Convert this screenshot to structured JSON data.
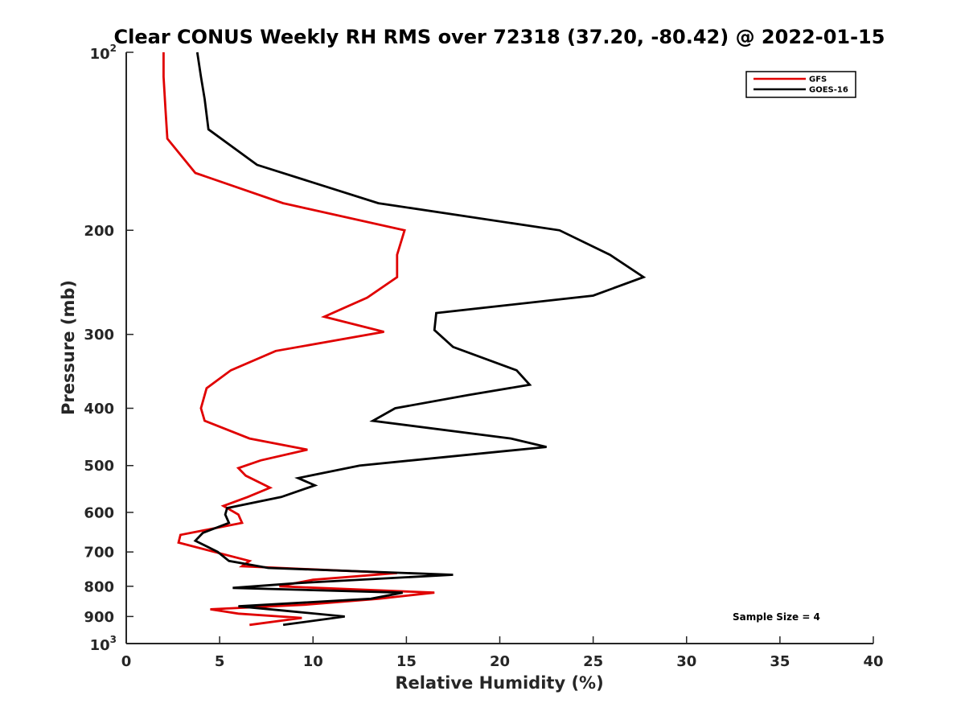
{
  "chart_data": {
    "type": "line",
    "title": "Clear CONUS Weekly RH RMS over 72318 (37.20, -80.42) @ 2022-01-15",
    "xlabel": "Relative Humidity (%)",
    "ylabel": "Pressure (mb)",
    "xlim": [
      0,
      40
    ],
    "ylim": [
      100,
      1000
    ],
    "y_scale": "log",
    "y_reversed": true,
    "grid": false,
    "legend_position": "top-right",
    "x_ticks": [
      0,
      5,
      10,
      15,
      20,
      25,
      30,
      35,
      40
    ],
    "x_tick_labels": [
      "0",
      "5",
      "10",
      "15",
      "20",
      "25",
      "30",
      "35",
      "40"
    ],
    "y_ticks": [
      200,
      300,
      400,
      500,
      600,
      700,
      800,
      900
    ],
    "y_tick_labels": [
      "200",
      "300",
      "400",
      "500",
      "600",
      "700",
      "800",
      "900"
    ],
    "y_end_labels": [
      {
        "value": 100,
        "base": "10",
        "exp": "2"
      },
      {
        "value": 1000,
        "base": "10",
        "exp": "3"
      }
    ],
    "series": [
      {
        "name": "GFS",
        "color": "#e00000",
        "points": [
          [
            2.0,
            100
          ],
          [
            2.0,
            110
          ],
          [
            2.1,
            125
          ],
          [
            2.2,
            140
          ],
          [
            3.7,
            160
          ],
          [
            8.4,
            180
          ],
          [
            14.9,
            200
          ],
          [
            14.5,
            220
          ],
          [
            14.5,
            240
          ],
          [
            12.9,
            260
          ],
          [
            10.6,
            280
          ],
          [
            13.8,
            297
          ],
          [
            8.0,
            320
          ],
          [
            5.6,
            345
          ],
          [
            4.3,
            370
          ],
          [
            4.0,
            400
          ],
          [
            4.2,
            420
          ],
          [
            6.6,
            450
          ],
          [
            9.7,
            470
          ],
          [
            7.2,
            490
          ],
          [
            6.0,
            505
          ],
          [
            6.4,
            520
          ],
          [
            7.7,
            545
          ],
          [
            6.5,
            565
          ],
          [
            5.2,
            585
          ],
          [
            6.0,
            605
          ],
          [
            6.2,
            625
          ],
          [
            2.9,
            655
          ],
          [
            2.8,
            675
          ],
          [
            6.6,
            725
          ],
          [
            6.2,
            740
          ],
          [
            14.5,
            760
          ],
          [
            10.0,
            780
          ],
          [
            8.2,
            800
          ],
          [
            16.5,
            820
          ],
          [
            13.5,
            840
          ],
          [
            9.5,
            860
          ],
          [
            4.5,
            875
          ],
          [
            6.0,
            890
          ],
          [
            9.4,
            905
          ],
          [
            6.6,
            930
          ]
        ]
      },
      {
        "name": "GOES-16",
        "color": "#000000",
        "points": [
          [
            3.8,
            100
          ],
          [
            4.0,
            110
          ],
          [
            4.2,
            120
          ],
          [
            4.4,
            135
          ],
          [
            7.0,
            155
          ],
          [
            13.5,
            180
          ],
          [
            23.2,
            200
          ],
          [
            25.9,
            220
          ],
          [
            27.7,
            240
          ],
          [
            25.0,
            258
          ],
          [
            16.6,
            276
          ],
          [
            16.5,
            295
          ],
          [
            17.5,
            315
          ],
          [
            20.9,
            345
          ],
          [
            21.6,
            365
          ],
          [
            18.3,
            380
          ],
          [
            14.4,
            400
          ],
          [
            13.2,
            420
          ],
          [
            20.6,
            450
          ],
          [
            22.5,
            465
          ],
          [
            12.5,
            500
          ],
          [
            9.2,
            525
          ],
          [
            10.1,
            540
          ],
          [
            8.3,
            565
          ],
          [
            5.4,
            590
          ],
          [
            5.3,
            605
          ],
          [
            5.5,
            625
          ],
          [
            4.1,
            650
          ],
          [
            3.7,
            670
          ],
          [
            4.9,
            700
          ],
          [
            5.5,
            725
          ],
          [
            7.6,
            745
          ],
          [
            17.5,
            765
          ],
          [
            9.2,
            790
          ],
          [
            5.7,
            805
          ],
          [
            14.8,
            820
          ],
          [
            13.1,
            840
          ],
          [
            6.0,
            865
          ],
          [
            8.5,
            880
          ],
          [
            11.7,
            900
          ],
          [
            8.4,
            930
          ]
        ]
      }
    ],
    "annotation": "Sample Size = 4"
  }
}
